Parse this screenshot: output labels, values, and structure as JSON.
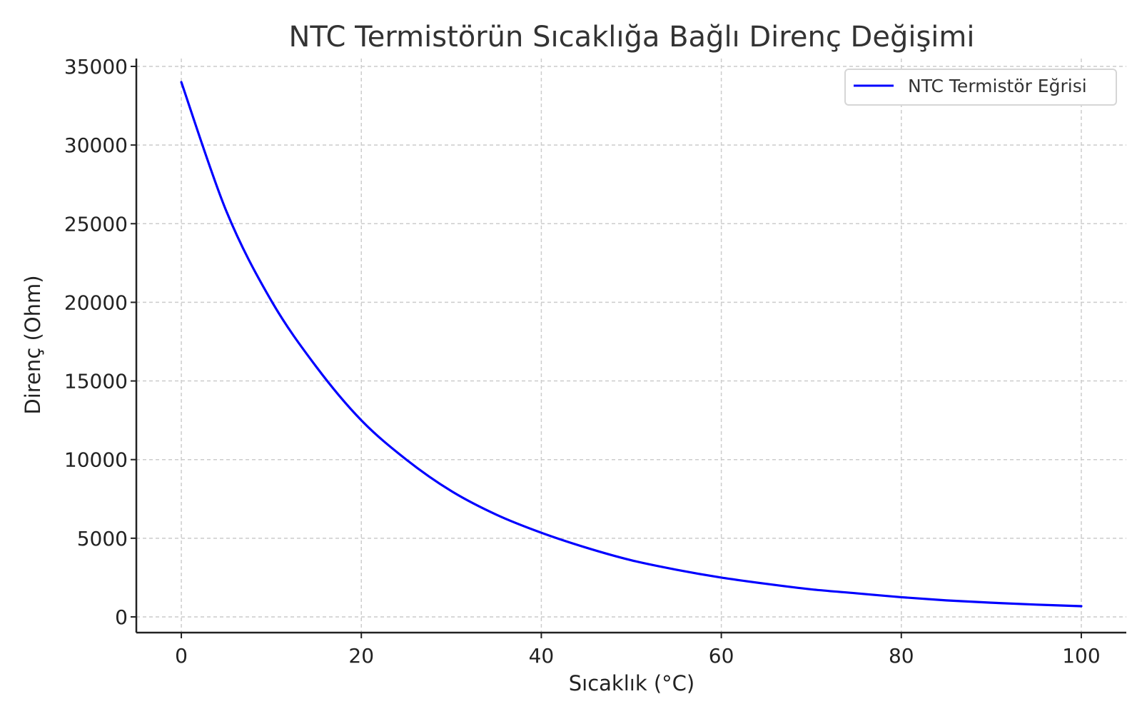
{
  "chart_data": {
    "type": "line",
    "title": "NTC Termistörün Sıcaklığa Bağlı Direnç Değişimi",
    "xlabel": "Sıcaklık (°C)",
    "ylabel": "Direnç (Ohm)",
    "xlim": [
      -5,
      105
    ],
    "ylim": [
      -1000,
      35500
    ],
    "x_ticks": [
      0,
      20,
      40,
      60,
      80,
      100
    ],
    "y_ticks": [
      0,
      5000,
      10000,
      15000,
      20000,
      25000,
      30000,
      35000
    ],
    "x_tick_labels": [
      "0",
      "20",
      "40",
      "60",
      "80",
      "100"
    ],
    "y_tick_labels": [
      "0",
      "5000",
      "10000",
      "15000",
      "20000",
      "25000",
      "30000",
      "35000"
    ],
    "grid": true,
    "legend_position": "top-right",
    "series": [
      {
        "name": "NTC Termistör Eğrisi",
        "color": "#0000ff",
        "x": [
          0,
          5,
          10,
          15,
          20,
          25,
          30,
          35,
          40,
          45,
          50,
          55,
          60,
          65,
          70,
          75,
          80,
          85,
          90,
          95,
          100
        ],
        "values": [
          34000,
          25800,
          20100,
          15900,
          12500,
          10000,
          8000,
          6500,
          5350,
          4400,
          3600,
          3000,
          2500,
          2100,
          1750,
          1500,
          1250,
          1050,
          900,
          780,
          680
        ]
      }
    ]
  }
}
